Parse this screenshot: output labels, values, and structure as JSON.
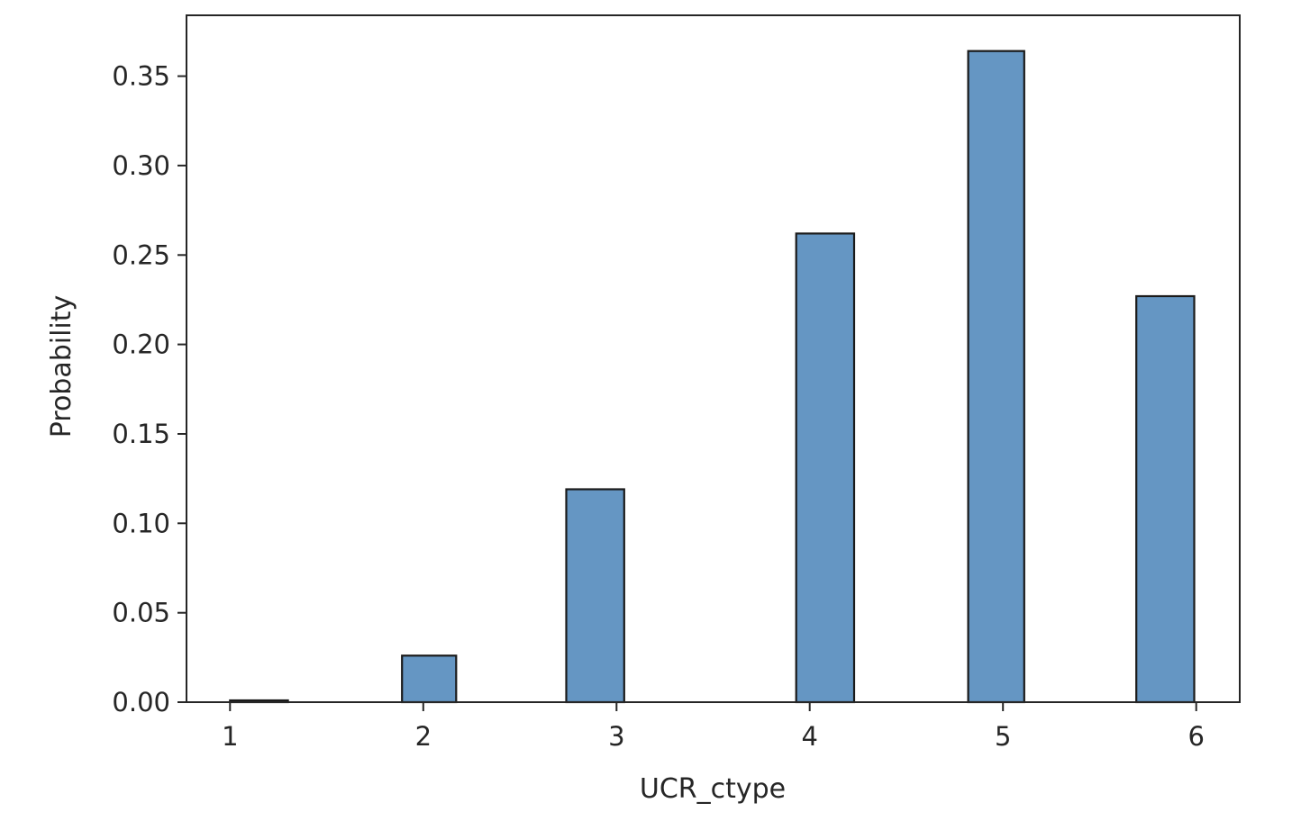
{
  "chart_data": {
    "type": "bar",
    "title": "",
    "xlabel": "UCR_ctype",
    "ylabel": "Probability",
    "x_ticks": [
      "1",
      "2",
      "3",
      "4",
      "5",
      "6"
    ],
    "y_ticks": [
      "0.00",
      "0.05",
      "0.10",
      "0.15",
      "0.20",
      "0.25",
      "0.30",
      "0.35"
    ],
    "xlim": [
      0.775,
      6.225
    ],
    "ylim": [
      0,
      0.384
    ],
    "bars": [
      {
        "x_start": 1.0,
        "x_end": 1.3,
        "value": 0.001
      },
      {
        "x_start": 1.89,
        "x_end": 2.17,
        "value": 0.026
      },
      {
        "x_start": 2.74,
        "x_end": 3.04,
        "value": 0.119
      },
      {
        "x_start": 3.93,
        "x_end": 4.23,
        "value": 0.262
      },
      {
        "x_start": 4.82,
        "x_end": 5.11,
        "value": 0.364
      },
      {
        "x_start": 5.69,
        "x_end": 5.99,
        "value": 0.227
      }
    ],
    "bar_color": "#6596c3",
    "edge_color": "#1a1a1a",
    "grid": false,
    "legend": "none"
  }
}
